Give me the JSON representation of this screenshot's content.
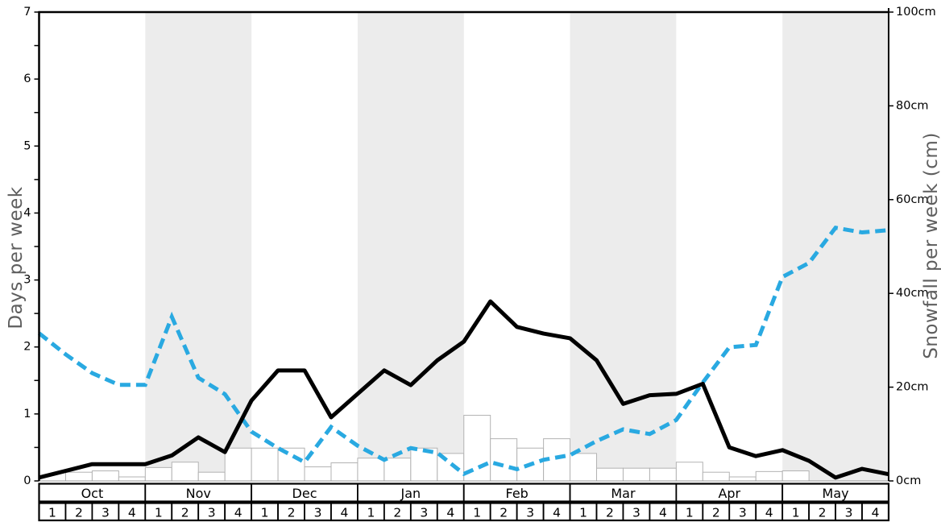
{
  "chart_data": {
    "type": "line",
    "title": "",
    "months": [
      "Oct",
      "Nov",
      "Dec",
      "Jan",
      "Feb",
      "Mar",
      "Apr",
      "May"
    ],
    "week_labels": [
      "1",
      "2",
      "3",
      "4"
    ],
    "shaded_months": [
      "Nov",
      "Jan",
      "Mar",
      "May"
    ],
    "left_axis": {
      "label": "Days per week",
      "min": 0,
      "max": 7,
      "ticks": [
        "0",
        "1",
        "2",
        "3",
        "4",
        "5",
        "6",
        "7"
      ]
    },
    "right_axis": {
      "label": "Snowfall per week (cm)",
      "min": 0,
      "max": 100,
      "ticks": [
        "0cm",
        "20cm",
        "40cm",
        "60cm",
        "80cm",
        "100cm"
      ]
    },
    "colors": {
      "days_line": "#000000",
      "snowfall_line": "#29a9e1",
      "band": "#ececec",
      "bar_fill": "#ffffff",
      "bar_stroke": "#b3b3b3",
      "axis_title": "#5e5e5e",
      "baseline": "#999999"
    },
    "series": [
      {
        "name": "days-per-week",
        "kind": "line-solid",
        "axis": "left",
        "values": [
          0.05,
          0.15,
          0.25,
          0.25,
          0.25,
          0.38,
          0.65,
          0.43,
          1.2,
          1.65,
          1.65,
          0.95,
          1.3,
          1.65,
          1.43,
          1.8,
          2.08,
          2.68,
          2.3,
          2.2,
          2.13,
          1.8,
          1.15,
          1.28,
          1.3,
          1.45,
          0.5,
          0.37,
          0.46,
          0.3,
          0.05,
          0.18,
          0.1
        ]
      },
      {
        "name": "snowfall-per-week-cm",
        "kind": "line-dashed",
        "axis": "right",
        "values": [
          31.5,
          27,
          23,
          20.5,
          20.5,
          35,
          22,
          18.5,
          10.5,
          7,
          4,
          11.5,
          7.5,
          4.5,
          7,
          6,
          1.5,
          4,
          2.5,
          4.5,
          5.5,
          8.5,
          11,
          10,
          13,
          21,
          28.5,
          29,
          43.5,
          46.5,
          54,
          53,
          53.5
        ]
      },
      {
        "name": "snow-days-history-bars",
        "kind": "bar",
        "axis": "left",
        "values": [
          0,
          0.13,
          0.15,
          0.06,
          0.2,
          0.28,
          0.13,
          0.49,
          0.49,
          0.49,
          0.21,
          0.27,
          0.34,
          0.34,
          0.49,
          0.41,
          0.98,
          0.63,
          0.49,
          0.63,
          0.41,
          0.19,
          0.19,
          0.19,
          0.28,
          0.13,
          0.06,
          0.14,
          0.15,
          0,
          0,
          0
        ]
      }
    ]
  }
}
